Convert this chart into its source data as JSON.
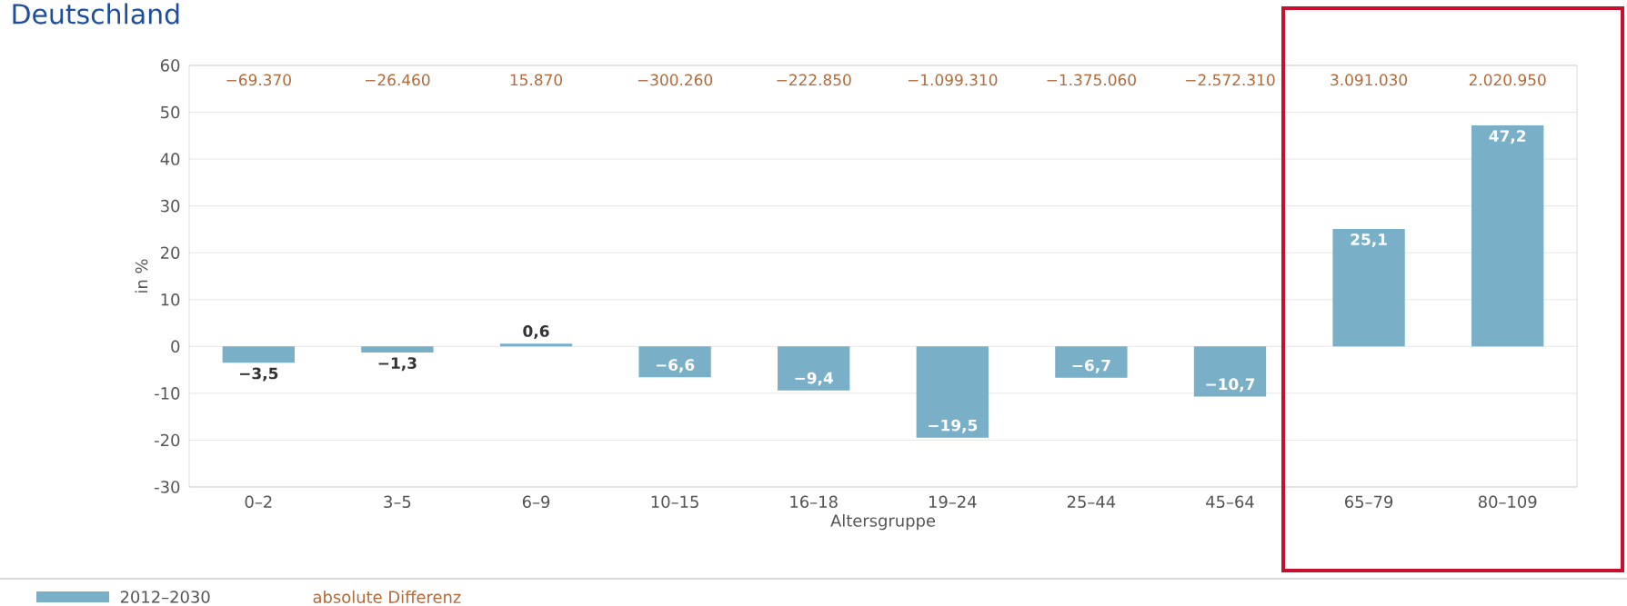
{
  "chart_data": {
    "type": "bar",
    "title": "Deutschland",
    "xlabel": "Altersgruppe",
    "ylabel": "in %",
    "categories": [
      "0–2",
      "3–5",
      "6–9",
      "10–15",
      "16–18",
      "19–24",
      "25–44",
      "45–64",
      "65–79",
      "80–109"
    ],
    "series": [
      {
        "name": "2012–2030",
        "color": "#7aafc8",
        "values": [
          -3.5,
          -1.3,
          0.6,
          -6.6,
          -9.4,
          -19.5,
          -6.7,
          -10.7,
          25.1,
          47.2
        ],
        "value_labels": [
          "−3,5",
          "−1,3",
          "0,6",
          "−6,6",
          "−9,4",
          "−19,5",
          "−6,7",
          "−10,7",
          "25,1",
          "47,2"
        ]
      }
    ],
    "ylim": [
      -30,
      60
    ],
    "yticks": [
      -30,
      -20,
      -10,
      0,
      10,
      20,
      30,
      40,
      50,
      60
    ],
    "grid": "y",
    "legend": "bottom left",
    "annotations": [
      "−69.370",
      "−26.460",
      "15.870",
      "−300.260",
      "−222.850",
      "−1.099.310",
      "−1.375.060",
      "−2.572.310",
      "3.091.030",
      "2.020.950",
      "absolute Differenz"
    ]
  }
}
